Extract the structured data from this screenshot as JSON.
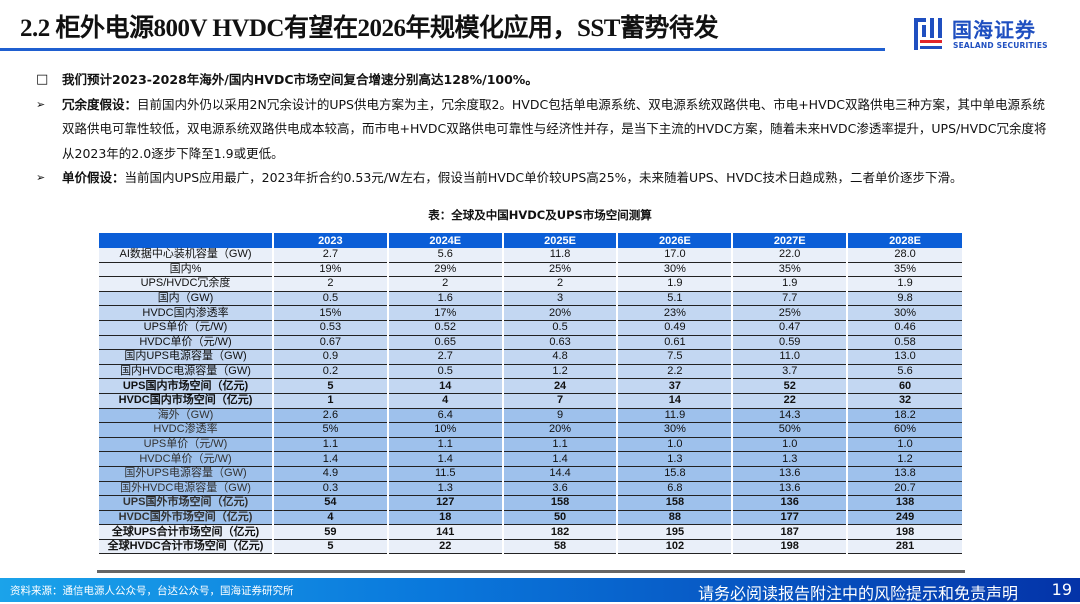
{
  "header": {
    "title": "2.2 柜外电源800V HVDC有望在2026年规模化应用，SST蓄势待发",
    "logo_cn": "国海证券",
    "logo_en": "SEALAND SECURITIES",
    "accent": "#1f5fd0"
  },
  "bullets": [
    {
      "marker": "□",
      "bold": "我们预计2023-2028年海外/国内HVDC市场空间复合增速分别高达128%/100%。",
      "text": ""
    },
    {
      "marker": "➢",
      "bold": "冗余度假设：",
      "text": "目前国内外仍以采用2N冗余设计的UPS供电方案为主，冗余度取2。HVDC包括单电源系统、双电源系统双路供电、市电+HVDC双路供电三种方案，其中单电源系统双路供电可靠性较低，双电源系统双路供电成本较高，而市电+HVDC双路供电可靠性与经济性并存，是当下主流的HVDC方案，随着未来HVDC渗透率提升，UPS/HVDC冗余度将从2023年的2.0逐步下降至1.9或更低。"
    },
    {
      "marker": "➢",
      "bold": "单价假设：",
      "text": "当前国内UPS应用最广，2023年折合约0.53元/W左右，假设当前HVDC单价较UPS高25%，未来随着UPS、HVDC技术日趋成熟，二者单价逐步下滑。"
    }
  ],
  "table": {
    "caption": "表：全球及中国HVDC及UPS市场空间测算",
    "columns": [
      "",
      "2023",
      "2024E",
      "2025E",
      "2026E",
      "2027E",
      "2028E"
    ],
    "header_color": "#0b5ed7",
    "rows": [
      {
        "style": "l",
        "bold": false,
        "cells": [
          "AI数据中心装机容量（GW)",
          "2.7",
          "5.6",
          "11.8",
          "17.0",
          "22.0",
          "28.0"
        ]
      },
      {
        "style": "l",
        "bold": false,
        "cells": [
          "国内%",
          "19%",
          "29%",
          "25%",
          "30%",
          "35%",
          "35%"
        ]
      },
      {
        "style": "l",
        "bold": false,
        "cells": [
          "UPS/HVDC冗余度",
          "2",
          "2",
          "2",
          "1.9",
          "1.9",
          "1.9"
        ]
      },
      {
        "style": "m",
        "bold": false,
        "cells": [
          "国内（GW)",
          "0.5",
          "1.6",
          "3",
          "5.1",
          "7.7",
          "9.8"
        ]
      },
      {
        "style": "m",
        "bold": false,
        "cells": [
          "HVDC国内渗透率",
          "15%",
          "17%",
          "20%",
          "23%",
          "25%",
          "30%"
        ]
      },
      {
        "style": "m",
        "bold": false,
        "cells": [
          "UPS单价（元/W)",
          "0.53",
          "0.52",
          "0.5",
          "0.49",
          "0.47",
          "0.46"
        ]
      },
      {
        "style": "m",
        "bold": false,
        "cells": [
          "HVDC单价（元/W)",
          "0.67",
          "0.65",
          "0.63",
          "0.61",
          "0.59",
          "0.58"
        ]
      },
      {
        "style": "m",
        "bold": false,
        "cells": [
          "国内UPS电源容量（GW)",
          "0.9",
          "2.7",
          "4.8",
          "7.5",
          "11.0",
          "13.0"
        ]
      },
      {
        "style": "m",
        "bold": false,
        "cells": [
          "国内HVDC电源容量（GW)",
          "0.2",
          "0.5",
          "1.2",
          "2.2",
          "3.7",
          "5.6"
        ]
      },
      {
        "style": "m",
        "bold": true,
        "cells": [
          "UPS国内市场空间（亿元)",
          "5",
          "14",
          "24",
          "37",
          "52",
          "60"
        ]
      },
      {
        "style": "m",
        "bold": true,
        "cells": [
          "HVDC国内市场空间（亿元)",
          "1",
          "4",
          "7",
          "14",
          "22",
          "32"
        ]
      },
      {
        "style": "d",
        "bold": false,
        "cells": [
          "海外（GW)",
          "2.6",
          "6.4",
          "9",
          "11.9",
          "14.3",
          "18.2"
        ]
      },
      {
        "style": "d",
        "bold": false,
        "cells": [
          "HVDC渗透率",
          "5%",
          "10%",
          "20%",
          "30%",
          "50%",
          "60%"
        ]
      },
      {
        "style": "d",
        "bold": false,
        "cells": [
          "UPS单价（元/W)",
          "1.1",
          "1.1",
          "1.1",
          "1.0",
          "1.0",
          "1.0"
        ]
      },
      {
        "style": "d",
        "bold": false,
        "cells": [
          "HVDC单价（元/W)",
          "1.4",
          "1.4",
          "1.4",
          "1.3",
          "1.3",
          "1.2"
        ]
      },
      {
        "style": "d",
        "bold": false,
        "cells": [
          "国外UPS电源容量（GW)",
          "4.9",
          "11.5",
          "14.4",
          "15.8",
          "13.6",
          "13.8"
        ]
      },
      {
        "style": "d",
        "bold": false,
        "cells": [
          "国外HVDC电源容量（GW)",
          "0.3",
          "1.3",
          "3.6",
          "6.8",
          "13.6",
          "20.7"
        ]
      },
      {
        "style": "d",
        "bold": true,
        "cells": [
          "UPS国外市场空间（亿元)",
          "54",
          "127",
          "158",
          "158",
          "136",
          "138"
        ]
      },
      {
        "style": "d",
        "bold": true,
        "cells": [
          "HVDC国外市场空间（亿元)",
          "4",
          "18",
          "50",
          "88",
          "177",
          "249"
        ]
      },
      {
        "style": "l",
        "bold": true,
        "cells": [
          "全球UPS合计市场空间（亿元)",
          "59",
          "141",
          "182",
          "195",
          "187",
          "198"
        ]
      },
      {
        "style": "l",
        "bold": true,
        "cells": [
          "全球HVDC合计市场空间（亿元)",
          "5",
          "22",
          "58",
          "102",
          "198",
          "281"
        ]
      }
    ]
  },
  "footer": {
    "source": "资料来源：通信电源人公众号，台达公众号，国海证券研究所",
    "disclaimer": "请务必阅读报告附注中的风险提示和免责声明",
    "page": "19"
  }
}
